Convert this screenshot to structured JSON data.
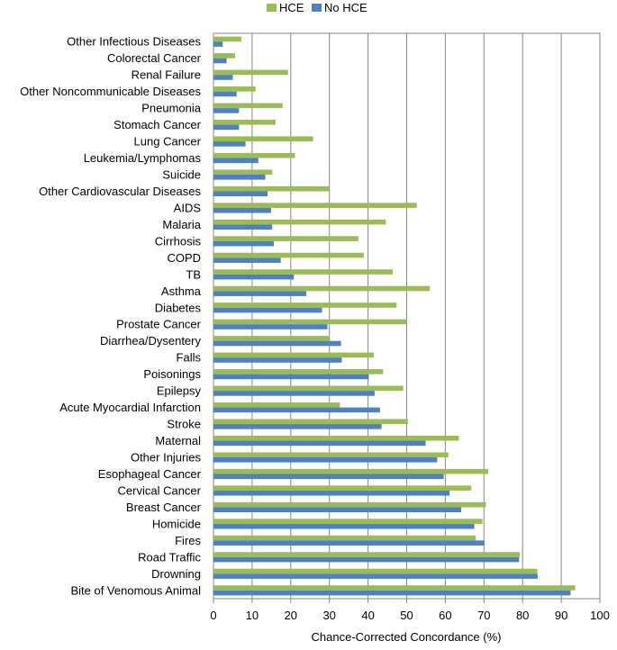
{
  "chart_data": {
    "type": "bar",
    "orientation": "horizontal",
    "title": "",
    "xlabel": "Chance-Corrected Concordance (%)",
    "ylabel": "",
    "xlim": [
      0,
      100
    ],
    "xticks": [
      0,
      10,
      20,
      30,
      40,
      50,
      60,
      70,
      80,
      90,
      100
    ],
    "grid": true,
    "legend_position": "top",
    "categories": [
      "Other Infectious Diseases",
      "Colorectal Cancer",
      "Renal Failure",
      "Other Noncommunicable Diseases",
      "Pneumonia",
      "Stomach Cancer",
      "Lung Cancer",
      "Leukemia/Lymphomas",
      "Suicide",
      "Other Cardiovascular Diseases",
      "AIDS",
      "Malaria",
      "Cirrhosis",
      "COPD",
      "TB",
      "Asthma",
      "Diabetes",
      "Prostate Cancer",
      "Diarrhea/Dysentery",
      "Falls",
      "Poisonings",
      "Epilepsy",
      "Acute Myocardial Infarction",
      "Stroke",
      "Maternal",
      "Other Injuries",
      "Esophageal Cancer",
      "Cervical Cancer",
      "Breast Cancer",
      "Homicide",
      "Fires",
      "Road Traffic",
      "Drowning",
      "Bite of Venomous Animal"
    ],
    "series": [
      {
        "name": "HCE",
        "color": "#9bbb59",
        "values": [
          7.2,
          5.6,
          19.3,
          10.9,
          17.9,
          16.1,
          25.8,
          21.1,
          15.2,
          30.0,
          52.6,
          44.6,
          37.5,
          38.9,
          46.4,
          56.0,
          47.4,
          50.0,
          30.0,
          41.5,
          43.9,
          49.1,
          32.7,
          50.3,
          63.5,
          60.8,
          71.1,
          66.7,
          70.5,
          69.6,
          67.9,
          79.3,
          83.8,
          93.6
        ]
      },
      {
        "name": "No HCE",
        "color": "#4f81bd",
        "values": [
          2.4,
          3.4,
          5.0,
          6.0,
          6.6,
          6.6,
          8.3,
          11.6,
          13.4,
          14.0,
          14.9,
          15.2,
          15.6,
          17.4,
          20.8,
          24.0,
          28.1,
          29.5,
          33.0,
          33.2,
          40.2,
          41.7,
          43.1,
          43.5,
          54.9,
          57.9,
          59.6,
          61.1,
          64.1,
          67.5,
          70.1,
          79.1,
          83.9,
          92.4
        ]
      }
    ]
  }
}
